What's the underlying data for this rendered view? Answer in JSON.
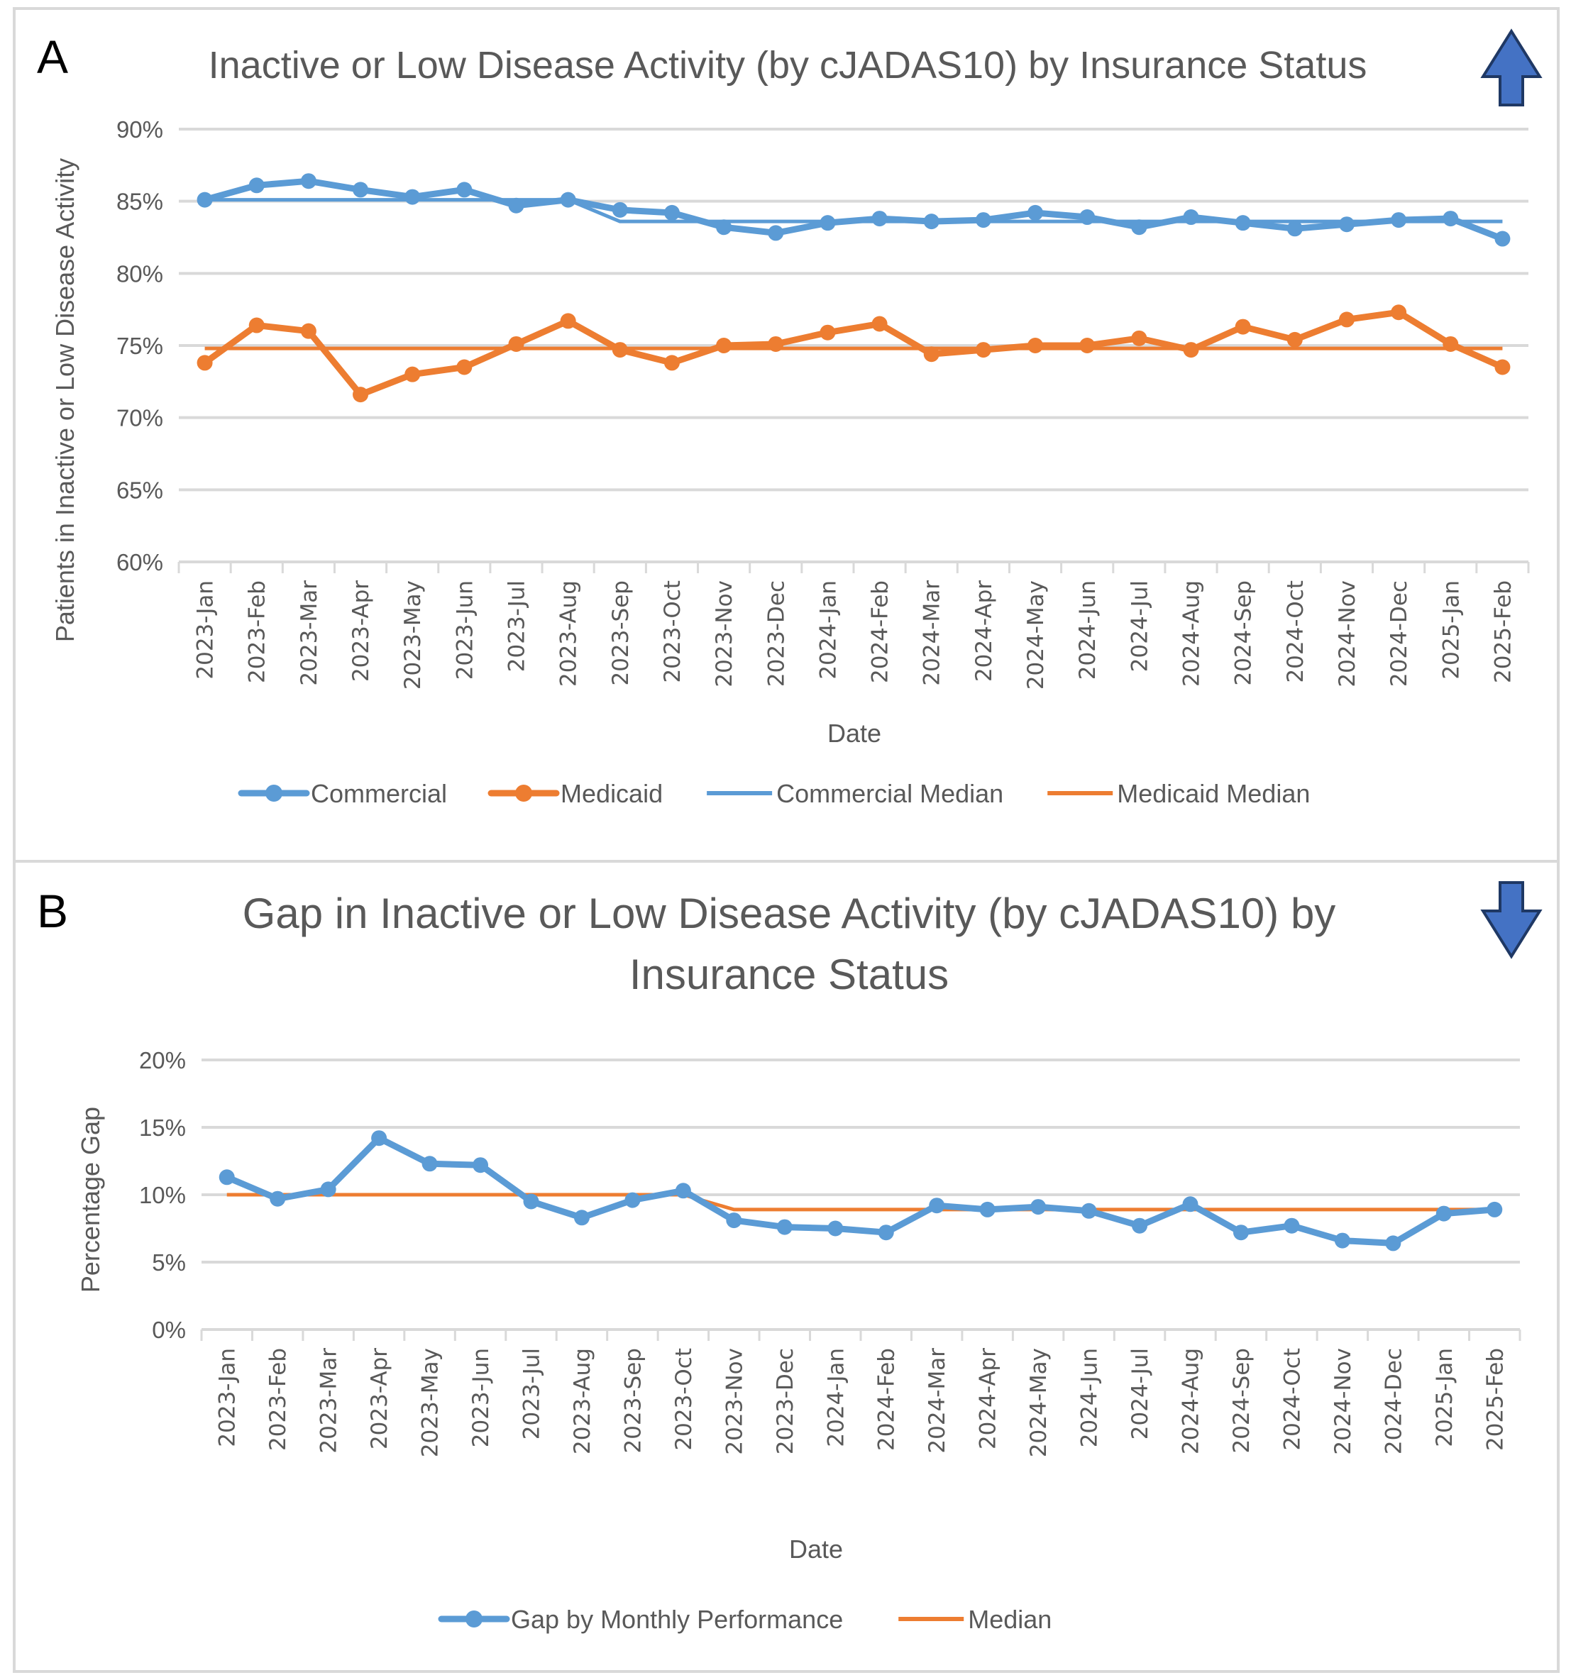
{
  "panels": [
    {
      "letter": "A",
      "trend_arrow": "up-arrow-icon"
    },
    {
      "letter": "B",
      "trend_arrow": "down-arrow-icon"
    }
  ],
  "colors": {
    "blue": "#5b9bd5",
    "orange": "#ed7d31",
    "grid": "#d9d9d9",
    "text": "#595959",
    "arrow_fill": "#4472c4",
    "arrow_stroke": "#1f3864"
  },
  "chart_data": [
    {
      "type": "line",
      "title": "Inactive or Low Disease Activity (by cJADAS10) by Insurance Status",
      "xlabel": "Date",
      "ylabel": "Patients in Inactive or Low Disease Activity",
      "ylim": [
        60,
        90
      ],
      "yticks": [
        "60%",
        "65%",
        "70%",
        "75%",
        "80%",
        "85%",
        "90%"
      ],
      "ytick_values": [
        60,
        65,
        70,
        75,
        80,
        85,
        90
      ],
      "grid": true,
      "legend_position": "bottom",
      "categories": [
        "2023-Jan",
        "2023-Feb",
        "2023-Mar",
        "2023-Apr",
        "2023-May",
        "2023-Jun",
        "2023-Jul",
        "2023-Aug",
        "2023-Sep",
        "2023-Oct",
        "2023-Nov",
        "2023-Dec",
        "2024-Jan",
        "2024-Feb",
        "2024-Mar",
        "2024-Apr",
        "2024-May",
        "2024-Jun",
        "2024-Jul",
        "2024-Aug",
        "2024-Sep",
        "2024-Oct",
        "2024-Nov",
        "2024-Dec",
        "2025-Jan",
        "2025-Feb"
      ],
      "series": [
        {
          "name": "Commercial",
          "color": "#5b9bd5",
          "style": "line-markers",
          "values": [
            85.1,
            86.1,
            86.4,
            85.8,
            85.3,
            85.8,
            84.7,
            85.1,
            84.4,
            84.2,
            83.2,
            82.8,
            83.5,
            83.8,
            83.6,
            83.7,
            84.2,
            83.9,
            83.2,
            83.9,
            83.5,
            83.1,
            83.4,
            83.7,
            83.8,
            82.4
          ]
        },
        {
          "name": "Medicaid",
          "color": "#ed7d31",
          "style": "line-markers",
          "values": [
            73.8,
            76.4,
            76.0,
            71.6,
            73.0,
            73.5,
            75.1,
            76.7,
            74.7,
            73.8,
            75.0,
            75.1,
            75.9,
            76.5,
            74.4,
            74.7,
            75.0,
            75.0,
            75.5,
            74.7,
            76.3,
            75.4,
            76.8,
            77.3,
            75.1,
            73.5
          ]
        },
        {
          "name": "Commercial Median",
          "color": "#5b9bd5",
          "style": "line",
          "values": [
            85.1,
            85.1,
            85.1,
            85.1,
            85.1,
            85.1,
            85.1,
            85.1,
            83.6,
            83.6,
            83.6,
            83.6,
            83.6,
            83.6,
            83.6,
            83.6,
            83.6,
            83.6,
            83.6,
            83.6,
            83.6,
            83.6,
            83.6,
            83.6,
            83.6,
            83.6
          ]
        },
        {
          "name": "Medicaid Median",
          "color": "#ed7d31",
          "style": "line",
          "values": [
            74.8,
            74.8,
            74.8,
            74.8,
            74.8,
            74.8,
            74.8,
            74.8,
            74.8,
            74.8,
            74.8,
            74.8,
            74.8,
            74.8,
            74.8,
            74.8,
            74.8,
            74.8,
            74.8,
            74.8,
            74.8,
            74.8,
            74.8,
            74.8,
            74.8,
            74.8
          ]
        }
      ]
    },
    {
      "type": "line",
      "title": "Gap in Inactive or Low Disease Activity (by cJADAS10) by Insurance Status",
      "title_lines": [
        "Gap in Inactive or Low Disease Activity (by cJADAS10) by",
        "Insurance Status"
      ],
      "xlabel": "Date",
      "ylabel": "Percentage Gap",
      "ylim": [
        0,
        20
      ],
      "yticks": [
        "0%",
        "5%",
        "10%",
        "15%",
        "20%"
      ],
      "ytick_values": [
        0,
        5,
        10,
        15,
        20
      ],
      "grid": true,
      "legend_position": "bottom",
      "categories": [
        "2023-Jan",
        "2023-Feb",
        "2023-Mar",
        "2023-Apr",
        "2023-May",
        "2023-Jun",
        "2023-Jul",
        "2023-Aug",
        "2023-Sep",
        "2023-Oct",
        "2023-Nov",
        "2023-Dec",
        "2024-Jan",
        "2024-Feb",
        "2024-Mar",
        "2024-Apr",
        "2024-May",
        "2024-Jun",
        "2024-Jul",
        "2024-Aug",
        "2024-Sep",
        "2024-Oct",
        "2024-Nov",
        "2024-Dec",
        "2025-Jan",
        "2025-Feb"
      ],
      "series": [
        {
          "name": "Gap by Monthly Performance",
          "color": "#5b9bd5",
          "style": "line-markers",
          "values": [
            11.3,
            9.7,
            10.4,
            14.2,
            12.3,
            12.2,
            9.5,
            8.3,
            9.6,
            10.3,
            8.1,
            7.6,
            7.5,
            7.2,
            9.2,
            8.9,
            9.1,
            8.8,
            7.7,
            9.3,
            7.2,
            7.7,
            6.6,
            6.4,
            8.6,
            8.9
          ]
        },
        {
          "name": "Median",
          "color": "#ed7d31",
          "style": "line",
          "values": [
            10.0,
            10.0,
            10.0,
            10.0,
            10.0,
            10.0,
            10.0,
            10.0,
            10.0,
            10.0,
            8.9,
            8.9,
            8.9,
            8.9,
            8.9,
            8.9,
            8.9,
            8.9,
            8.9,
            8.9,
            8.9,
            8.9,
            8.9,
            8.9,
            8.9,
            8.9
          ]
        }
      ]
    }
  ]
}
